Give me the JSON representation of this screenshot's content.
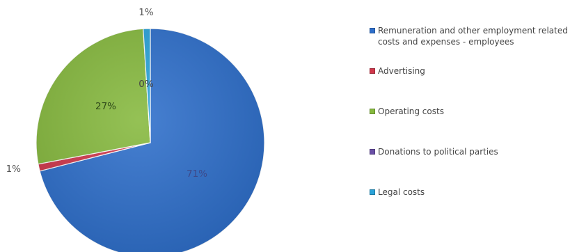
{
  "chart_data": {
    "type": "pie",
    "title": "",
    "categories": [
      "Remuneration and other employment related costs and expenses - employees",
      "Advertising",
      "Operating costs",
      "Donations to political parties",
      "Legal costs"
    ],
    "values": [
      71,
      1,
      27,
      0,
      1
    ],
    "labels": [
      "71%",
      "1%",
      "27%",
      "0%",
      "1%"
    ],
    "colors": [
      "#2e6fcb",
      "#d0374b",
      "#86b93e",
      "#6a4fa6",
      "#2aa3d9"
    ],
    "label_colors": [
      "#3d4a8a",
      "#555555",
      "#2f4a1a",
      "#444444",
      "#555555"
    ],
    "legend_position": "right",
    "start_angle_deg": 0,
    "direction": "clockwise"
  }
}
